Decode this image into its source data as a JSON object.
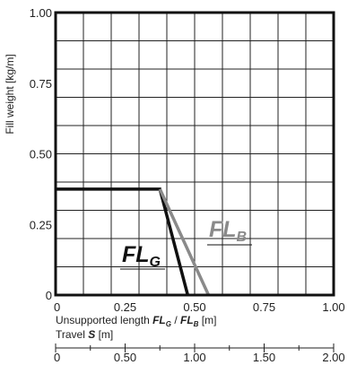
{
  "chart_data": {
    "type": "line",
    "ylabel": "Fill weight [kg/m]",
    "xlabel": {
      "prefix": "Unsupported length ",
      "g_main": "FL",
      "g_sub": "G",
      "sep": " / ",
      "b_main": "FL",
      "b_sub": "B",
      "unit": " [m]"
    },
    "x2label": {
      "prefix": "Travel ",
      "symbol": "S",
      "unit": " [m]"
    },
    "xlim": [
      0,
      1.0
    ],
    "ylim": [
      0,
      1.0
    ],
    "x2lim": [
      0,
      2.0
    ],
    "xticks": [
      0,
      0.25,
      0.5,
      0.75,
      1.0
    ],
    "xtick_labels": [
      "0",
      "0.25",
      "0.50",
      "0.75",
      "1.00"
    ],
    "yticks": [
      0,
      0.25,
      0.5,
      0.75,
      1.0
    ],
    "ytick_labels": [
      "0",
      "0.25",
      "0.50",
      "0.75",
      "1.00"
    ],
    "x2ticks": [
      0,
      0.5,
      1.0,
      1.5,
      2.0
    ],
    "x2tick_labels": [
      "0",
      "0.50",
      "1.00",
      "1.50",
      "2.00"
    ],
    "grid": true,
    "series": [
      {
        "main": "FL",
        "sub": "G",
        "color": "#111111",
        "points": [
          [
            0,
            0.375
          ],
          [
            0.375,
            0.375
          ],
          [
            0.475,
            0
          ]
        ]
      },
      {
        "main": "FL",
        "sub": "B",
        "color": "#8a8a8a",
        "points": [
          [
            0.375,
            0.375
          ],
          [
            0.55,
            0
          ]
        ]
      }
    ]
  }
}
